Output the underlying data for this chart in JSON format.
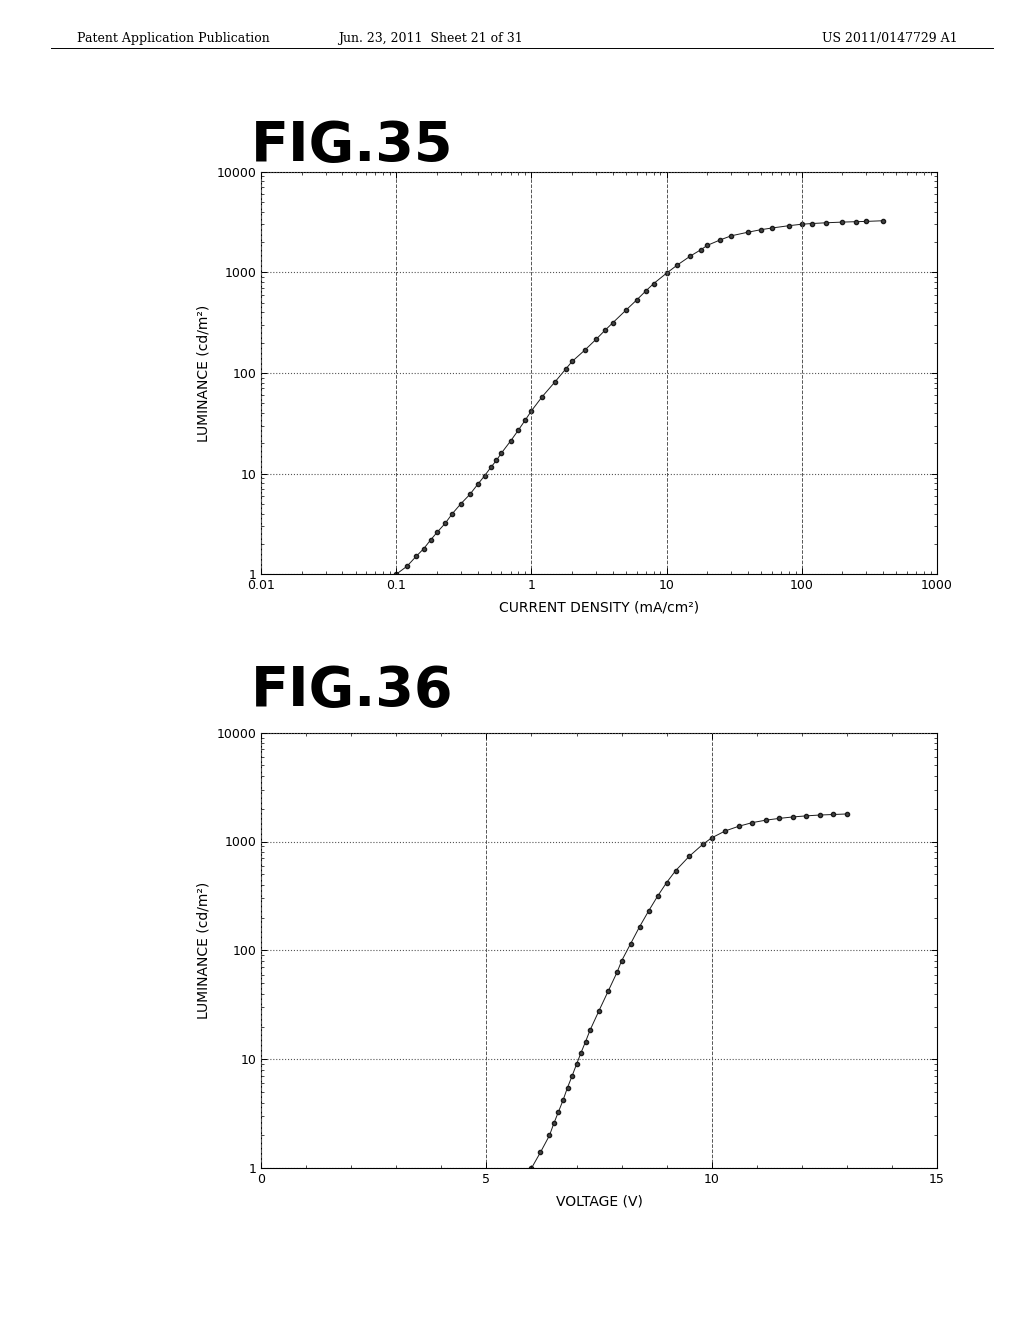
{
  "header_left": "Patent Application Publication",
  "header_mid": "Jun. 23, 2011  Sheet 21 of 31",
  "header_right": "US 2011/0147729 A1",
  "fig35_title": "FIG.35",
  "fig36_title": "FIG.36",
  "fig35_xlabel": "CURRENT DENSITY (mA/cm²)",
  "fig35_ylabel": "LUMINANCE (cd/m²)",
  "fig36_xlabel": "VOLTAGE (V)",
  "fig36_ylabel": "LUMINANCE (cd/m²)",
  "fig35_xlim": [
    0.01,
    1000
  ],
  "fig35_ylim": [
    1,
    10000
  ],
  "fig36_xlim": [
    0,
    15
  ],
  "fig36_ylim": [
    1,
    10000
  ],
  "fig35_xticks": [
    0.01,
    0.1,
    1,
    10,
    100,
    1000
  ],
  "fig35_yticks": [
    1,
    10,
    100,
    1000,
    10000
  ],
  "fig35_xticklabels": [
    "0.01",
    "0.1",
    "1",
    "10",
    "100",
    "1000"
  ],
  "fig35_yticklabels": [
    "1",
    "10",
    "100",
    "1000",
    "10000"
  ],
  "fig36_xticks": [
    0,
    5,
    10,
    15
  ],
  "fig36_xticklabels": [
    "0",
    "5",
    "10",
    "15"
  ],
  "fig36_yticks": [
    1,
    10,
    100,
    1000,
    10000
  ],
  "fig36_yticklabels": [
    "1",
    "10",
    "100",
    "1000",
    "10000"
  ],
  "bg_color": "#ffffff",
  "plot_bg": "#ffffff",
  "data_color": "#1a1a1a",
  "fig35_x": [
    0.1,
    0.12,
    0.14,
    0.16,
    0.18,
    0.2,
    0.23,
    0.26,
    0.3,
    0.35,
    0.4,
    0.45,
    0.5,
    0.55,
    0.6,
    0.7,
    0.8,
    0.9,
    1.0,
    1.2,
    1.5,
    1.8,
    2.0,
    2.5,
    3.0,
    3.5,
    4.0,
    5.0,
    6.0,
    7.0,
    8.0,
    10.0,
    12.0,
    15.0,
    18.0,
    20.0,
    25.0,
    30.0,
    40.0,
    50.0,
    60.0,
    80.0,
    100.0,
    120.0,
    150.0,
    200.0,
    250.0,
    300.0,
    400.0
  ],
  "fig35_y": [
    1.0,
    1.2,
    1.5,
    1.8,
    2.2,
    2.6,
    3.2,
    4.0,
    5.0,
    6.2,
    7.8,
    9.5,
    11.5,
    13.5,
    16.0,
    21.0,
    27.0,
    34.0,
    42.0,
    58.0,
    82.0,
    110.0,
    130.0,
    170.0,
    215.0,
    265.0,
    315.0,
    420.0,
    530.0,
    650.0,
    770.0,
    980.0,
    1180.0,
    1450.0,
    1680.0,
    1850.0,
    2100.0,
    2300.0,
    2500.0,
    2650.0,
    2750.0,
    2900.0,
    3000.0,
    3050.0,
    3100.0,
    3150.0,
    3180.0,
    3200.0,
    3250.0
  ],
  "fig36_x": [
    6.0,
    6.2,
    6.4,
    6.5,
    6.6,
    6.7,
    6.8,
    6.9,
    7.0,
    7.1,
    7.2,
    7.3,
    7.5,
    7.7,
    7.9,
    8.0,
    8.2,
    8.4,
    8.6,
    8.8,
    9.0,
    9.2,
    9.5,
    9.8,
    10.0,
    10.3,
    10.6,
    10.9,
    11.2,
    11.5,
    11.8,
    12.1,
    12.4,
    12.7,
    13.0
  ],
  "fig36_y": [
    1.0,
    1.4,
    2.0,
    2.6,
    3.3,
    4.2,
    5.5,
    7.0,
    9.0,
    11.5,
    14.5,
    18.5,
    28.0,
    42.0,
    63.0,
    80.0,
    115.0,
    165.0,
    230.0,
    315.0,
    420.0,
    540.0,
    730.0,
    940.0,
    1080.0,
    1250.0,
    1380.0,
    1490.0,
    1570.0,
    1630.0,
    1680.0,
    1720.0,
    1750.0,
    1770.0,
    1790.0
  ]
}
